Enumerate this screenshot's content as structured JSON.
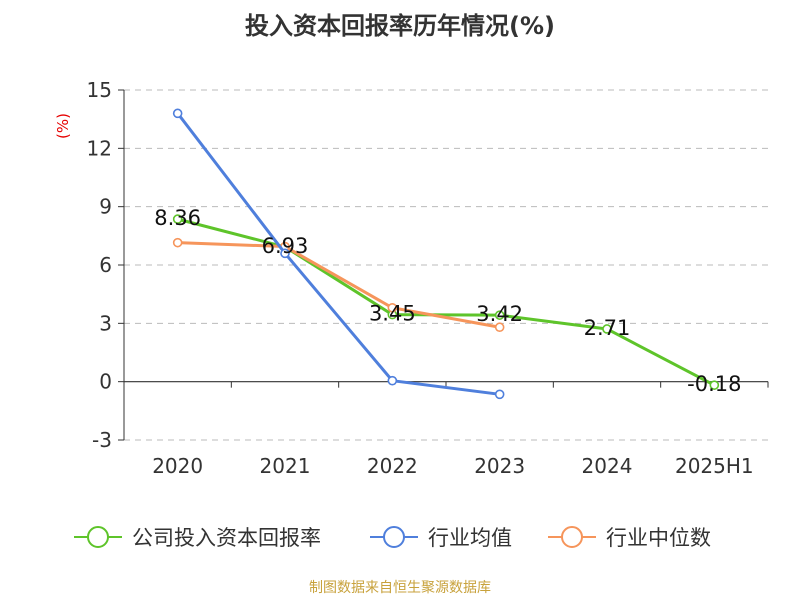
{
  "chart_data": {
    "type": "line",
    "title": "投入资本回报率历年情况(%)",
    "ylabel": "(%)",
    "xlabel": "",
    "categories": [
      "2020",
      "2021",
      "2022",
      "2023",
      "2024",
      "2025H1"
    ],
    "ylim": [
      -3,
      15
    ],
    "yticks": [
      -3,
      0,
      3,
      6,
      9,
      12,
      15
    ],
    "grid": true,
    "legend_position": "bottom",
    "series": [
      {
        "name": "公司投入资本回报率",
        "color": "#5ec42a",
        "values": [
          8.36,
          6.93,
          3.45,
          3.42,
          2.71,
          -0.18
        ],
        "labels": [
          "8.36",
          "6.93",
          "3.45",
          "3.42",
          "2.71",
          "-0.18"
        ]
      },
      {
        "name": "行业均值",
        "color": "#4f7fdc",
        "values": [
          13.8,
          6.6,
          0.05,
          -0.65,
          null,
          null
        ]
      },
      {
        "name": "行业中位数",
        "color": "#f6955b",
        "values": [
          7.15,
          6.95,
          3.8,
          2.8,
          null,
          null
        ]
      }
    ],
    "source": "制图数据来自恒生聚源数据库"
  }
}
